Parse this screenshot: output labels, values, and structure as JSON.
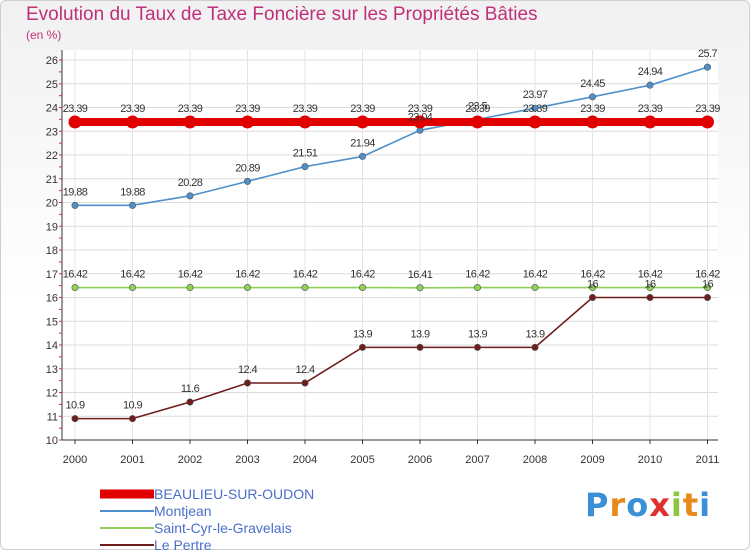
{
  "chart_data": {
    "type": "line",
    "title": "Evolution du Taux de Taxe Foncière sur les Propriétés Bâties",
    "ylabel": "(en %)",
    "xlabel": "",
    "x": [
      "2000",
      "2001",
      "2002",
      "2003",
      "2004",
      "2005",
      "2006",
      "2007",
      "2008",
      "2009",
      "2010",
      "2011"
    ],
    "ylim": [
      10,
      26
    ],
    "yticks": [
      "10",
      "11",
      "12",
      "13",
      "14",
      "15",
      "16",
      "17",
      "18",
      "19",
      "20",
      "21",
      "22",
      "23",
      "24",
      "25",
      "26"
    ],
    "series": [
      {
        "name": "BEAULIEU-SUR-OUDON",
        "color": "#e00000",
        "values": [
          23.39,
          23.39,
          23.39,
          23.39,
          23.39,
          23.39,
          23.39,
          23.39,
          23.39,
          23.39,
          23.39,
          23.39
        ],
        "labels": [
          "23.39",
          "23.39",
          "23.39",
          "23.39",
          "23.39",
          "23.39",
          "23.39",
          "23.39",
          "23.39",
          "23.39",
          "23.39",
          "23.39"
        ]
      },
      {
        "name": "Montjean",
        "color": "#4f8fca",
        "values": [
          19.88,
          19.88,
          20.28,
          20.89,
          21.51,
          21.94,
          23.04,
          23.5,
          23.97,
          24.45,
          24.94,
          25.7
        ],
        "labels": [
          "19.88",
          "19.88",
          "20.28",
          "20.89",
          "21.51",
          "21.94",
          "23.04",
          "23.5",
          "23.97",
          "24.45",
          "24.94",
          "25.7"
        ]
      },
      {
        "name": "Saint-Cyr-le-Gravelais",
        "color": "#8ed05a",
        "values": [
          16.42,
          16.42,
          16.42,
          16.42,
          16.42,
          16.42,
          16.41,
          16.42,
          16.42,
          16.42,
          16.42,
          16.42
        ],
        "labels": [
          "16.42",
          "16.42",
          "16.42",
          "16.42",
          "16.42",
          "16.42",
          "16.41",
          "16.42",
          "16.42",
          "16.42",
          "16.42",
          "16.42"
        ]
      },
      {
        "name": "Le Pertre",
        "color": "#6e1c1c",
        "values": [
          10.9,
          10.9,
          11.6,
          12.4,
          12.4,
          13.9,
          13.9,
          13.9,
          13.9,
          16,
          16,
          16
        ],
        "labels": [
          "10.9",
          "10.9",
          "11.6",
          "12.4",
          "12.4",
          "13.9",
          "13.9",
          "13.9",
          "13.9",
          "16",
          "16",
          "16"
        ]
      }
    ]
  },
  "brand": {
    "letters": [
      "P",
      "r",
      "o",
      "x",
      "i",
      "t",
      "i"
    ],
    "colors": [
      "#3b8fd6",
      "#e88a1a",
      "#3b8fd6",
      "#e0312f",
      "#8cc63f",
      "#e88a1a",
      "#3b8fd6"
    ]
  }
}
